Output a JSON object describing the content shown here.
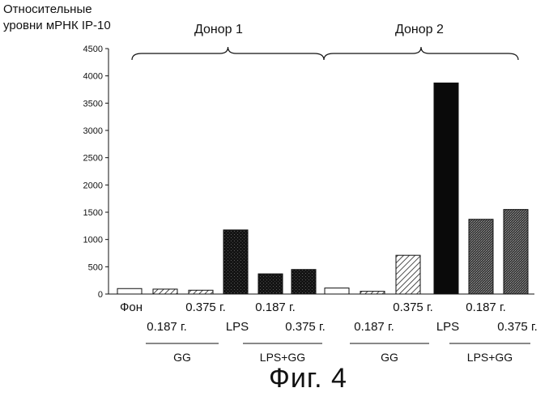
{
  "chart_data": {
    "type": "bar",
    "ylabel_lines": [
      "Относительные",
      "уровни мРНК IP-10"
    ],
    "ylim": [
      0,
      4500
    ],
    "yticks": [
      0,
      500,
      1000,
      1500,
      2000,
      2500,
      3000,
      3500,
      4000,
      4500
    ],
    "groups": [
      "Донор 1",
      "Донор 2"
    ],
    "bars": [
      {
        "donor": 1,
        "value": 100,
        "fill": "white",
        "label": "Фон",
        "label_row": 1
      },
      {
        "donor": 1,
        "value": 90,
        "fill": "hatch",
        "label": "0.187 г.",
        "label_row": 2
      },
      {
        "donor": 1,
        "value": 70,
        "fill": "hatch",
        "label": "0.375 г.",
        "label_row": 1
      },
      {
        "donor": 1,
        "value": 1175,
        "fill": "dark",
        "label": "LPS",
        "label_row": 2
      },
      {
        "donor": 1,
        "value": 370,
        "fill": "dark",
        "label": "0.187 г.",
        "label_row": 1
      },
      {
        "donor": 1,
        "value": 450,
        "fill": "dark",
        "label": "0.375 г.",
        "label_row": 2
      },
      {
        "donor": 2,
        "value": 110,
        "fill": "white",
        "label": "",
        "label_row": 1
      },
      {
        "donor": 2,
        "value": 50,
        "fill": "hatch",
        "label": "0.187 г.",
        "label_row": 2
      },
      {
        "donor": 2,
        "value": 710,
        "fill": "hatch",
        "label": "0.375 г.",
        "label_row": 1
      },
      {
        "donor": 2,
        "value": 3870,
        "fill": "black",
        "label": "LPS",
        "label_row": 2
      },
      {
        "donor": 2,
        "value": 1370,
        "fill": "stipple",
        "label": "0.187 г.",
        "label_row": 1
      },
      {
        "donor": 2,
        "value": 1550,
        "fill": "stipple",
        "label": "0.375 г.",
        "label_row": 2
      }
    ],
    "bracket_labels": [
      "GG",
      "LPS+GG",
      "GG",
      "LPS+GG"
    ],
    "figure_caption": "Фиг. 4"
  }
}
